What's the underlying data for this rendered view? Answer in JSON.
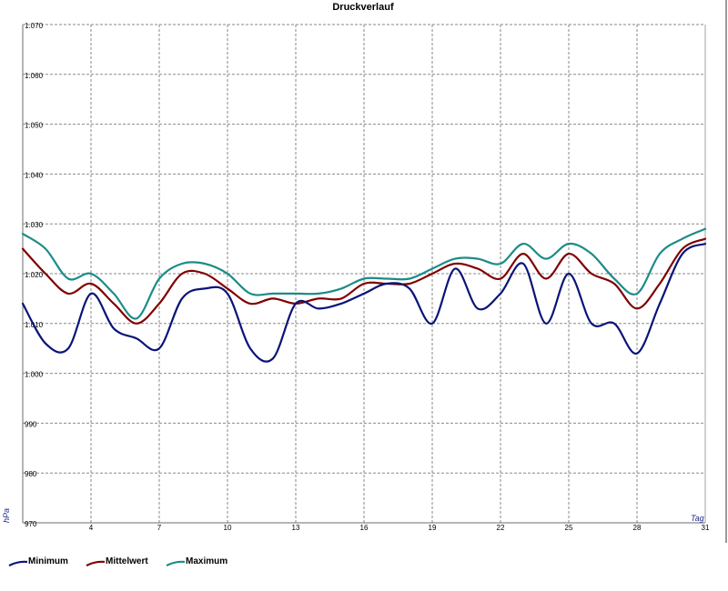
{
  "chart_data": {
    "type": "line",
    "title": "Druckverlauf",
    "xlabel": "Tag",
    "ylabel": "hPa",
    "xlim": [
      1,
      31
    ],
    "ylim": [
      970,
      1070
    ],
    "y_ticks": [
      970,
      980,
      990,
      1000,
      1010,
      1020,
      1030,
      1040,
      1050,
      1060,
      1070
    ],
    "y_tick_labels": [
      "970",
      "980",
      "990",
      "1.000",
      "1.010",
      "1.020",
      "1.030",
      "1.040",
      "1.050",
      "1.060",
      "1.070"
    ],
    "x_ticks": [
      4,
      7,
      10,
      13,
      16,
      19,
      22,
      25,
      28,
      31
    ],
    "x_tick_labels": [
      "4",
      "7",
      "10",
      "13",
      "16",
      "19",
      "22",
      "25",
      "28",
      "31"
    ],
    "grid": true,
    "legend_position": "bottom-left",
    "series": [
      {
        "name": "Minimum",
        "color": "#0a1478",
        "x": [
          1,
          2,
          3,
          4,
          5,
          6,
          7,
          8,
          9,
          10,
          11,
          12,
          13,
          14,
          15,
          16,
          17,
          18,
          19,
          20,
          21,
          22,
          23,
          24,
          25,
          26,
          27,
          28,
          29,
          30,
          31
        ],
        "values": [
          1014,
          1006,
          1005,
          1016,
          1009,
          1007,
          1005,
          1015,
          1017,
          1016,
          1005,
          1003,
          1014,
          1013,
          1014,
          1016,
          1018,
          1017,
          1010,
          1021,
          1013,
          1016,
          1022,
          1010,
          1020,
          1010,
          1010,
          1004,
          1014,
          1024,
          1026
        ]
      },
      {
        "name": "Mittelwert",
        "color": "#800000",
        "x": [
          1,
          2,
          3,
          4,
          5,
          6,
          7,
          8,
          9,
          10,
          11,
          12,
          13,
          14,
          15,
          16,
          17,
          18,
          19,
          20,
          21,
          22,
          23,
          24,
          25,
          26,
          27,
          28,
          29,
          30,
          31
        ],
        "values": [
          1025,
          1020,
          1016,
          1018,
          1014,
          1010,
          1014,
          1020,
          1020,
          1017,
          1014,
          1015,
          1014,
          1015,
          1015,
          1018,
          1018,
          1018,
          1020,
          1022,
          1021,
          1019,
          1024,
          1019,
          1024,
          1020,
          1018,
          1013,
          1018,
          1025,
          1027
        ]
      },
      {
        "name": "Maximum",
        "color": "#1c8c88",
        "x": [
          1,
          2,
          3,
          4,
          5,
          6,
          7,
          8,
          9,
          10,
          11,
          12,
          13,
          14,
          15,
          16,
          17,
          18,
          19,
          20,
          21,
          22,
          23,
          24,
          25,
          26,
          27,
          28,
          29,
          30,
          31
        ],
        "values": [
          1028,
          1025,
          1019,
          1020,
          1016,
          1011,
          1019,
          1022,
          1022,
          1020,
          1016,
          1016,
          1016,
          1016,
          1017,
          1019,
          1019,
          1019,
          1021,
          1023,
          1023,
          1022,
          1026,
          1023,
          1026,
          1024,
          1019,
          1016,
          1024,
          1027,
          1029
        ]
      }
    ]
  }
}
